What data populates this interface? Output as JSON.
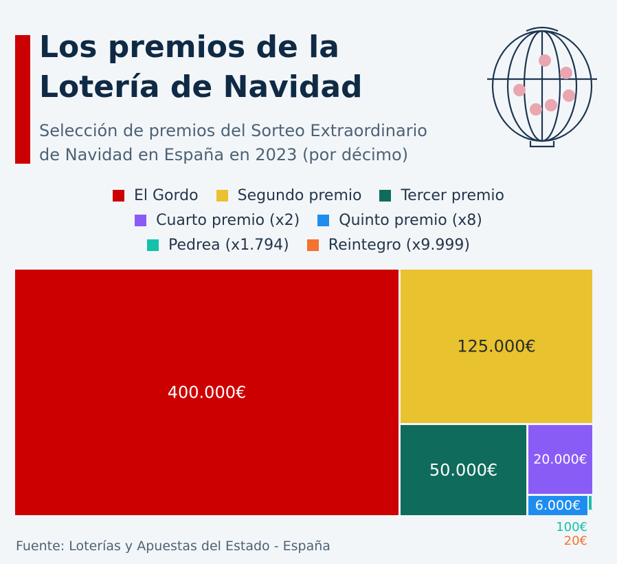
{
  "header": {
    "title_line1": "Los premios de la",
    "title_line2": "Lotería de Navidad",
    "subtitle_line1": "Selección de premios del Sorteo Extraordinario",
    "subtitle_line2": "de Navidad en España en 2023 (por décimo)"
  },
  "legend": {
    "rows": [
      [
        {
          "label": "El Gordo",
          "color": "#cc0000"
        },
        {
          "label": "Segundo premio",
          "color": "#e8c22f"
        },
        {
          "label": "Tercer premio",
          "color": "#0f6b5c"
        }
      ],
      [
        {
          "label": "Cuarto premio (x2)",
          "color": "#8a5cf6"
        },
        {
          "label": "Quinto premio (x8)",
          "color": "#1f8df0"
        }
      ],
      [
        {
          "label": "Pedrea (x1.794)",
          "color": "#16c1aa"
        },
        {
          "label": "Reintegro (x9.999)",
          "color": "#f47330"
        }
      ]
    ]
  },
  "chart_data": {
    "type": "treemap",
    "unit": "€",
    "items": [
      {
        "name": "El Gordo",
        "value": 400000,
        "label": "400.000€",
        "color": "#cc0000",
        "text_color": "#ffffff"
      },
      {
        "name": "Segundo premio",
        "value": 125000,
        "label": "125.000€",
        "color": "#e8c22f",
        "text_color": "#2a2a2a"
      },
      {
        "name": "Tercer premio",
        "value": 50000,
        "label": "50.000€",
        "color": "#0f6b5c",
        "text_color": "#ffffff"
      },
      {
        "name": "Cuarto premio (x2)",
        "value": 20000,
        "label": "20.000€",
        "color": "#8a5cf6",
        "text_color": "#ffffff"
      },
      {
        "name": "Quinto premio (x8)",
        "value": 6000,
        "label": "6.000€",
        "color": "#1f8df0",
        "text_color": "#ffffff"
      },
      {
        "name": "Pedrea (x1.794)",
        "value": 100,
        "label": "100€",
        "color": "#16c1aa",
        "text_color": "#16c1aa"
      },
      {
        "name": "Reintegro (x9.999)",
        "value": 20,
        "label": "20€",
        "color": "#f47330",
        "text_color": "#f47330"
      }
    ]
  },
  "footer": {
    "source": "Fuente: Loterías y Apuestas del Estado - España"
  }
}
